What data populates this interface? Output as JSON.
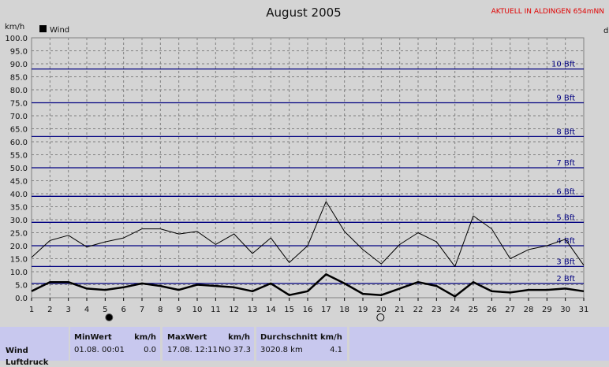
{
  "header": {
    "title": "August 2005",
    "brand": "AKTUELL IN ALDINGEN 654mNN",
    "unit_left": "km/h",
    "unit_right": "d"
  },
  "legend": {
    "wind_label": "Wind"
  },
  "colors": {
    "background": "#d4d4d4",
    "gridline": "#808080",
    "beaufort_line": "#000080",
    "series": "#000000",
    "stats_panel": "#c8c8ee"
  },
  "chart_data": {
    "type": "line",
    "title": "August 2005",
    "ylabel": "km/h",
    "ylim": [
      0,
      100
    ],
    "xlim": [
      1,
      31
    ],
    "y_ticks": [
      "0.0",
      "5.0",
      "10.0",
      "15.0",
      "20.0",
      "25.0",
      "30.0",
      "35.0",
      "40.0",
      "45.0",
      "50.0",
      "55.0",
      "60.0",
      "65.0",
      "70.0",
      "75.0",
      "80.0",
      "85.0",
      "90.0",
      "95.0",
      "100.0"
    ],
    "x_ticks": [
      "1",
      "2",
      "3",
      "4",
      "5",
      "6",
      "7",
      "8",
      "9",
      "10",
      "11",
      "12",
      "13",
      "14",
      "15",
      "16",
      "17",
      "18",
      "19",
      "20",
      "21",
      "22",
      "23",
      "24",
      "25",
      "26",
      "27",
      "28",
      "29",
      "30",
      "31"
    ],
    "grid": true,
    "legend_position": "top-left",
    "beaufort": [
      {
        "label": "2 Bft",
        "value": 5.5
      },
      {
        "label": "3 Bft",
        "value": 12
      },
      {
        "label": "4 Bft",
        "value": 20
      },
      {
        "label": "5 Bft",
        "value": 29
      },
      {
        "label": "6 Bft",
        "value": 39
      },
      {
        "label": "7 Bft",
        "value": 50
      },
      {
        "label": "8 Bft",
        "value": 62
      },
      {
        "label": "9 Bft",
        "value": 75
      },
      {
        "label": "10 Bft",
        "value": 88
      }
    ],
    "series": [
      {
        "name": "Wind",
        "x": [
          1,
          2,
          3,
          4,
          5,
          6,
          7,
          8,
          9,
          10,
          11,
          12,
          13,
          14,
          15,
          16,
          17,
          18,
          19,
          20,
          21,
          22,
          23,
          24,
          25,
          26,
          27,
          28,
          29,
          30,
          31
        ],
        "values": [
          2.5,
          6,
          6,
          3.5,
          3,
          4,
          5.5,
          4.5,
          3,
          5,
          4.5,
          4,
          2.5,
          5.5,
          1,
          2.5,
          9,
          5.5,
          1.5,
          1,
          3.5,
          6,
          4.5,
          0.5,
          6,
          2.5,
          2,
          3,
          3,
          3.5,
          2.5
        ],
        "stroke_width": 2.5
      },
      {
        "x": [
          1,
          2,
          3,
          4,
          5,
          6,
          7,
          8,
          9,
          10,
          11,
          12,
          13,
          14,
          15,
          16,
          17,
          18,
          19,
          20,
          21,
          22,
          23,
          24,
          25,
          26,
          27,
          28,
          29,
          30,
          31
        ],
        "values": [
          15.5,
          22,
          24,
          19.5,
          21.5,
          23,
          26.5,
          26.5,
          24.5,
          25.5,
          20.5,
          24.5,
          17,
          23,
          13.5,
          20,
          37,
          25.5,
          18.5,
          13,
          20.5,
          25,
          21.5,
          12,
          31.5,
          26.5,
          15,
          18.5,
          20,
          22.5,
          12.5
        ],
        "stroke_width": 1
      }
    ],
    "moon_phases": [
      {
        "day": 5,
        "phase": "new-moon"
      },
      {
        "day": 20,
        "phase": "full-moon"
      }
    ]
  },
  "stats": {
    "row_label": "Wind",
    "row_label_next": "Luftdruck",
    "min": {
      "header": "MinWert",
      "unit": "km/h",
      "date": "01.08.",
      "time": "00:01",
      "value": "0.0"
    },
    "max": {
      "header": "MaxWert",
      "unit": "km/h",
      "datetime": "17.08.  12:11",
      "direction": "NO",
      "value": "37.3"
    },
    "avg": {
      "header": "Durchschnitt km/h",
      "distance": "3020.8 km",
      "value": "4.1"
    }
  }
}
